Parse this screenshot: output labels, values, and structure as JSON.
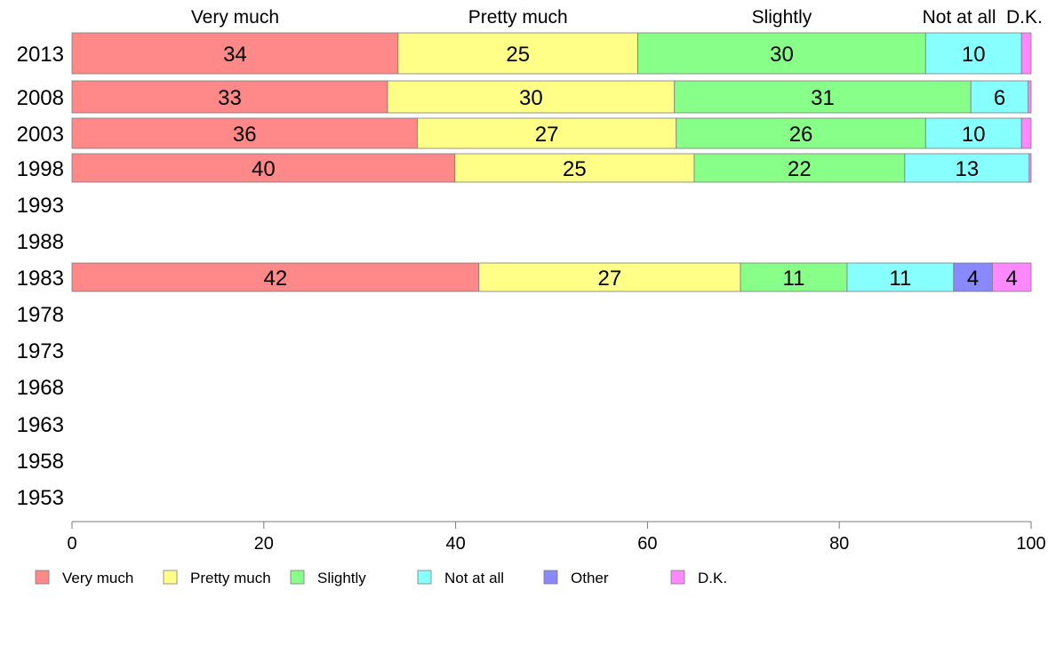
{
  "chart_data": {
    "type": "bar",
    "orientation": "horizontal",
    "stacked": true,
    "categories": [
      "2013",
      "2008",
      "2003",
      "1998",
      "1993",
      "1988",
      "1983",
      "1978",
      "1973",
      "1968",
      "1963",
      "1958",
      "1953"
    ],
    "series": [
      {
        "name": "Very much",
        "color": "#FF8888",
        "values": [
          34,
          33,
          36,
          40,
          null,
          null,
          42,
          null,
          null,
          null,
          null,
          null,
          null
        ]
      },
      {
        "name": "Pretty much",
        "color": "#FFFF88",
        "values": [
          25,
          30,
          27,
          25,
          null,
          null,
          27,
          null,
          null,
          null,
          null,
          null,
          null
        ]
      },
      {
        "name": "Slightly",
        "color": "#88FF88",
        "values": [
          30,
          31,
          26,
          22,
          null,
          null,
          11,
          null,
          null,
          null,
          null,
          null,
          null
        ]
      },
      {
        "name": "Not at all",
        "color": "#88FFFF",
        "values": [
          10,
          6,
          10,
          13,
          null,
          null,
          11,
          null,
          null,
          null,
          null,
          null,
          null
        ]
      },
      {
        "name": "Other",
        "color": "#8888FF",
        "values": [
          null,
          null,
          null,
          null,
          null,
          null,
          4,
          null,
          null,
          null,
          null,
          null,
          null
        ]
      },
      {
        "name": "D.K.",
        "color": "#FF88FF",
        "values": [
          1,
          0.3,
          1,
          0.2,
          null,
          null,
          4,
          null,
          null,
          null,
          null,
          null,
          null
        ]
      }
    ],
    "segment_labels": [
      [
        "34",
        "25",
        "30",
        "10",
        "",
        ""
      ],
      [
        "33",
        "30",
        "31",
        "6",
        "",
        ""
      ],
      [
        "36",
        "27",
        "26",
        "10",
        "",
        ""
      ],
      [
        "40",
        "25",
        "22",
        "13",
        "",
        ""
      ],
      [],
      [],
      [
        "42",
        "27",
        "11",
        "11",
        "4",
        "4"
      ],
      [],
      [],
      [],
      [],
      [],
      []
    ],
    "top_labels": [
      "Very much",
      "Pretty much",
      "Slightly",
      "Not at all",
      "D.K."
    ],
    "xlim": [
      0,
      100
    ],
    "xticks": [
      0,
      20,
      40,
      60,
      80,
      100
    ],
    "legend_position": "bottom",
    "grid": false
  }
}
